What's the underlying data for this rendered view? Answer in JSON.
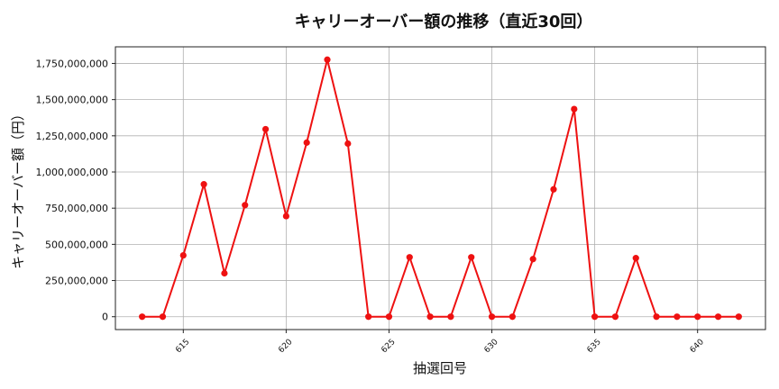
{
  "chart_data": {
    "type": "line",
    "title": "キャリーオーバー額の推移（直近30回）",
    "xlabel": "抽選回号",
    "ylabel": "キャリーオーバー額（円）",
    "x": [
      613,
      614,
      615,
      616,
      617,
      618,
      619,
      620,
      621,
      622,
      623,
      624,
      625,
      626,
      627,
      628,
      629,
      630,
      631,
      632,
      633,
      634,
      635,
      636,
      637,
      638,
      639,
      640,
      641,
      642
    ],
    "series": [
      {
        "values": [
          0,
          0,
          424000000,
          915000000,
          300000000,
          771000000,
          1296000000,
          695000000,
          1203000000,
          1776000000,
          1196000000,
          0,
          0,
          411000000,
          0,
          0,
          411000000,
          0,
          0,
          398000000,
          880000000,
          1435000000,
          0,
          0,
          405000000,
          0,
          0,
          0,
          0,
          0
        ],
        "color": "#ee1111"
      }
    ],
    "x_ticks": [
      615,
      620,
      625,
      630,
      635,
      640
    ],
    "x_tick_labels": [
      "615",
      "620",
      "625",
      "630",
      "635",
      "640"
    ],
    "y_ticks": [
      0,
      250000000,
      500000000,
      750000000,
      1000000000,
      1250000000,
      1500000000,
      1750000000
    ],
    "y_tick_labels": [
      "0",
      "250,000,000",
      "500,000,000",
      "750,000,000",
      "1,000,000,000",
      "1,250,000,000",
      "1,500,000,000",
      "1,750,000,000"
    ],
    "xlim": [
      611.7,
      643.3
    ],
    "ylim": [
      -88800000,
      1864800000
    ],
    "grid": true,
    "legend": "none",
    "marker": "circle"
  }
}
